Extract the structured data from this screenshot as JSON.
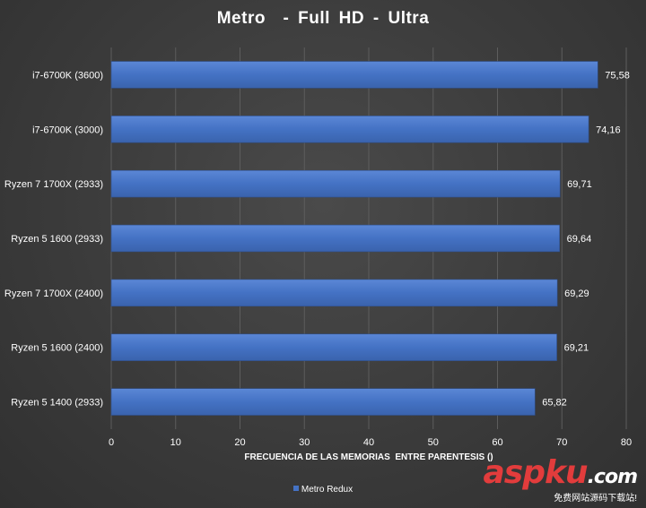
{
  "chart_data": {
    "type": "bar",
    "orientation": "horizontal",
    "title": "Metro  - Full HD - Ultra",
    "xlabel": "FRECUENCIA DE LAS MEMORIAS  ENTRE PARENTESIS ()",
    "ylabel": "",
    "categories": [
      "i7-6700K (3600)",
      "i7-6700K (3000)",
      "Ryzen 7 1700X (2933)",
      "Ryzen 5 1600 (2933)",
      "Ryzen 7 1700X (2400)",
      "Ryzen 5 1600 (2400)",
      "Ryzen 5 1400 (2933)"
    ],
    "series": [
      {
        "name": "Metro Redux",
        "values": [
          75.58,
          74.16,
          69.71,
          69.64,
          69.29,
          69.21,
          65.82
        ],
        "labels": [
          "75,58",
          "74,16",
          "69,71",
          "69,64",
          "69,29",
          "69,21",
          "65,82"
        ],
        "color": "#4472c4"
      }
    ],
    "xlim": [
      0,
      80
    ],
    "xticks": [
      0,
      10,
      20,
      30,
      40,
      50,
      60,
      70,
      80
    ],
    "grid": true,
    "legend_position": "bottom"
  },
  "watermark": {
    "brand": "aspku",
    "suffix": ".com",
    "tagline": "免费网站源码下载站!"
  }
}
